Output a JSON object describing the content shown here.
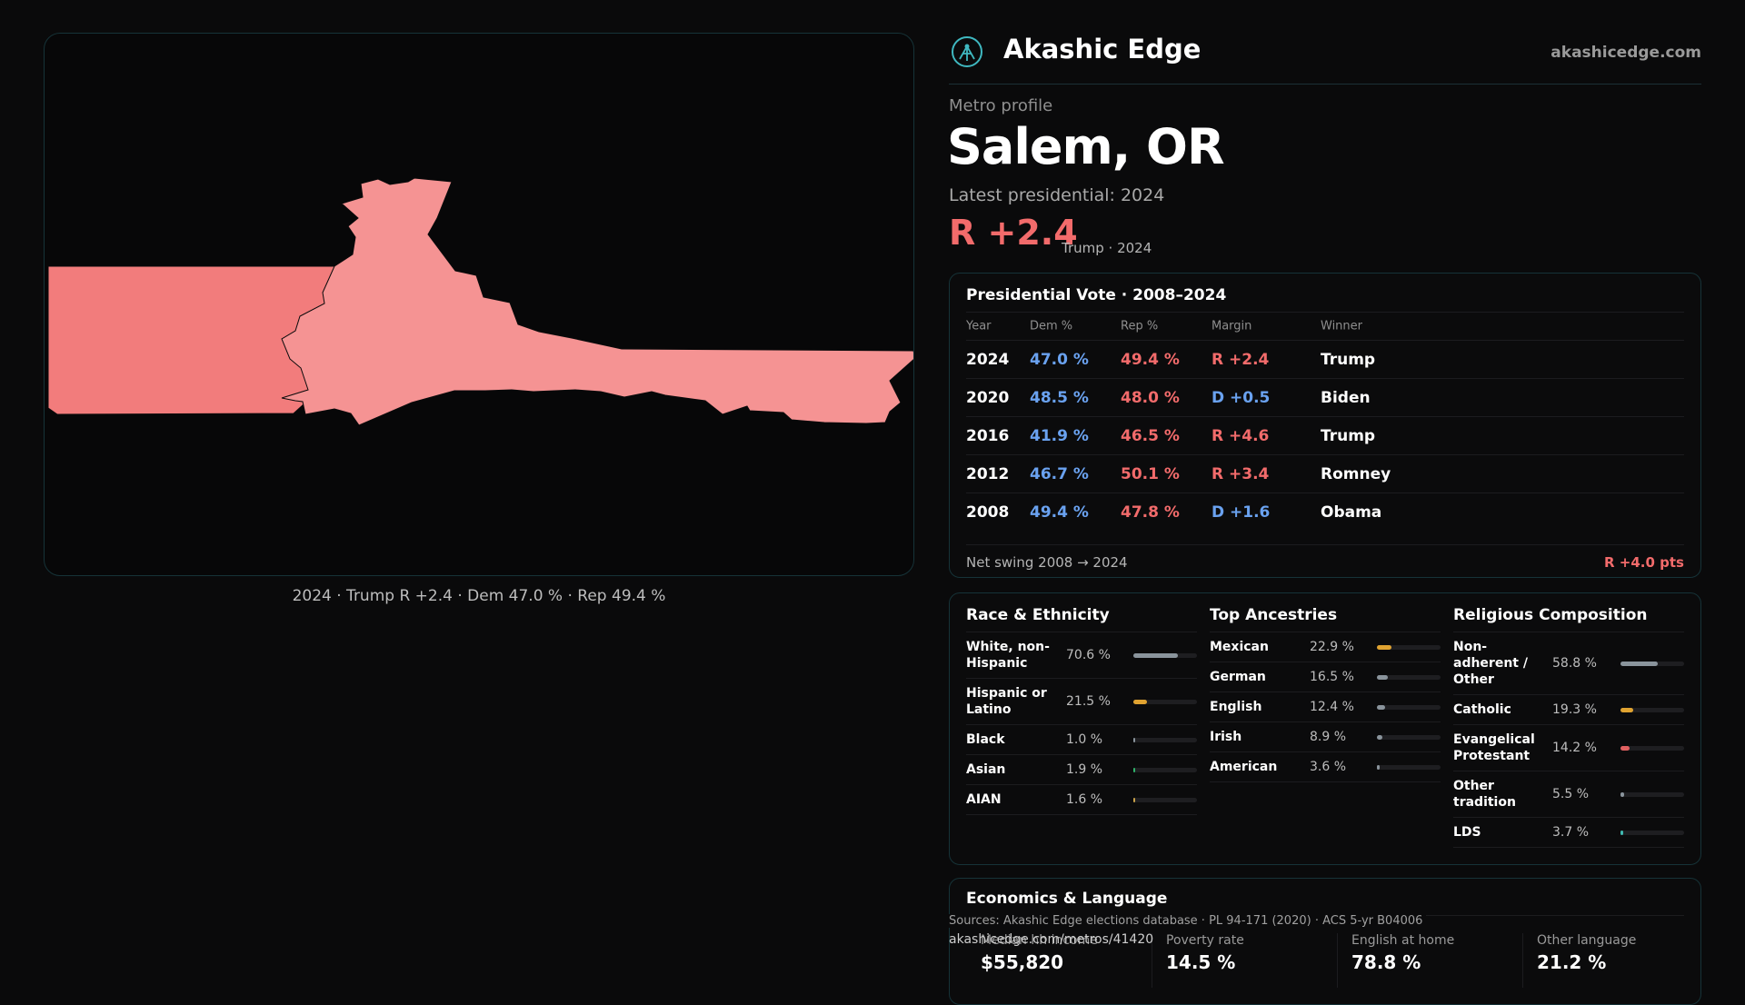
{
  "brand": {
    "name": "Akashic Edge",
    "site": "akashicedge.com"
  },
  "profile": {
    "eyebrow": "Metro profile",
    "name": "Salem, OR",
    "latest_label": "Latest presidential: 2024",
    "margin": "R +2.4",
    "margin_sub": "Trump · 2024"
  },
  "map": {
    "caption": "2024 · Trump R +2.4 · Dem 47.0 % · Rep 49.4 %",
    "fill_west": "#f27c7c",
    "fill_east": "#f59393"
  },
  "vote": {
    "title": "Presidential Vote · 2008–2024",
    "headers": {
      "year": "Year",
      "dem": "Dem %",
      "rep": "Rep %",
      "margin": "Margin",
      "winner": "Winner"
    },
    "rows": [
      {
        "year": "2024",
        "dem": "47.0 %",
        "rep": "49.4 %",
        "margin": "R +2.4",
        "party": "R",
        "winner": "Trump"
      },
      {
        "year": "2020",
        "dem": "48.5 %",
        "rep": "48.0 %",
        "margin": "D +0.5",
        "party": "D",
        "winner": "Biden"
      },
      {
        "year": "2016",
        "dem": "41.9 %",
        "rep": "46.5 %",
        "margin": "R +4.6",
        "party": "R",
        "winner": "Trump"
      },
      {
        "year": "2012",
        "dem": "46.7 %",
        "rep": "50.1 %",
        "margin": "R +3.4",
        "party": "R",
        "winner": "Romney"
      },
      {
        "year": "2008",
        "dem": "49.4 %",
        "rep": "47.8 %",
        "margin": "D +1.6",
        "party": "D",
        "winner": "Obama"
      }
    ],
    "swing_label": "Net swing 2008 → 2024",
    "swing_value": "R +4.0 pts"
  },
  "race": {
    "title": "Race & Ethnicity",
    "items": [
      {
        "label": "White, non-Hispanic",
        "pct": "70.6 %",
        "value": 70.6,
        "color": "#8a949c"
      },
      {
        "label": "Hispanic or Latino",
        "pct": "21.5 %",
        "value": 21.5,
        "color": "#e0a331"
      },
      {
        "label": "Black",
        "pct": "1.0 %",
        "value": 1.0,
        "color": "#8a949c"
      },
      {
        "label": "Asian",
        "pct": "1.9 %",
        "value": 1.9,
        "color": "#2fb36a"
      },
      {
        "label": "AIAN",
        "pct": "1.6 %",
        "value": 1.6,
        "color": "#c9a24a"
      }
    ]
  },
  "ancestry": {
    "title": "Top Ancestries",
    "items": [
      {
        "label": "Mexican",
        "pct": "22.9 %",
        "value": 22.9,
        "color": "#e0a331"
      },
      {
        "label": "German",
        "pct": "16.5 %",
        "value": 16.5,
        "color": "#8a949c"
      },
      {
        "label": "English",
        "pct": "12.4 %",
        "value": 12.4,
        "color": "#8a949c"
      },
      {
        "label": "Irish",
        "pct": "8.9 %",
        "value": 8.9,
        "color": "#8a949c"
      },
      {
        "label": "American",
        "pct": "3.6 %",
        "value": 3.6,
        "color": "#8a949c"
      }
    ]
  },
  "religion": {
    "title": "Religious Composition",
    "items": [
      {
        "label": "Non-adherent / Other",
        "pct": "58.8 %",
        "value": 58.8,
        "color": "#8a949c"
      },
      {
        "label": "Catholic",
        "pct": "19.3 %",
        "value": 19.3,
        "color": "#e0a331"
      },
      {
        "label": "Evangelical Protestant",
        "pct": "14.2 %",
        "value": 14.2,
        "color": "#e06060"
      },
      {
        "label": "Other tradition",
        "pct": "5.5 %",
        "value": 5.5,
        "color": "#8a949c"
      },
      {
        "label": "LDS",
        "pct": "3.7 %",
        "value": 3.7,
        "color": "#3fb8b0"
      }
    ]
  },
  "economics": {
    "title": "Economics & Language",
    "items": [
      {
        "label": "Median hh income",
        "value": "$55,820"
      },
      {
        "label": "Poverty rate",
        "value": "14.5 %"
      },
      {
        "label": "English at home",
        "value": "78.8 %"
      },
      {
        "label": "Other language",
        "value": "21.2 %"
      }
    ]
  },
  "footer": {
    "sources": "Sources: Akashic Edge elections database · PL 94-171 (2020) · ACS 5-yr B04006",
    "url": "akashicedge.com/metros/41420"
  },
  "colors": {
    "dem": "#6aa2f0",
    "rep": "#f26b6b",
    "accent": "#3fb8c0"
  }
}
